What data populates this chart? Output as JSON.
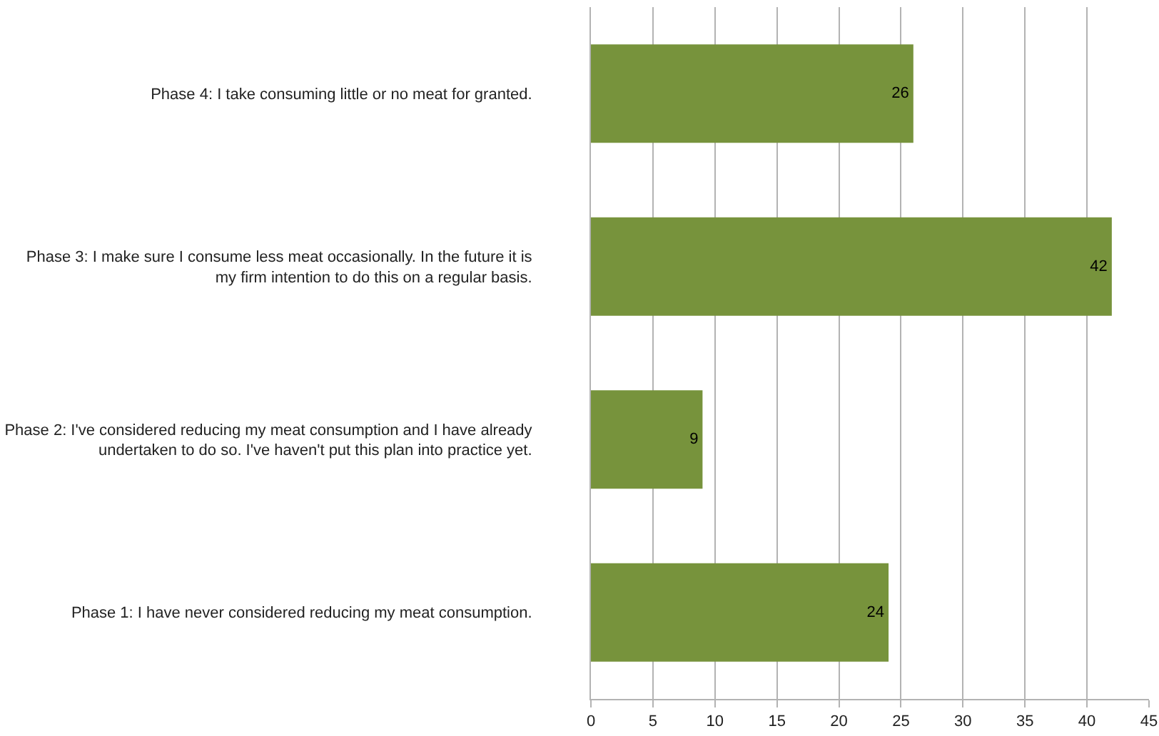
{
  "chart_data": {
    "type": "bar",
    "orientation": "horizontal",
    "categories": [
      "Phase 4: I take consuming little or no meat for granted.",
      "Phase 3: I make sure I consume less meat occasionally. In the future it is my firm intention to do this on a regular basis.",
      "Phase 2: I've considered reducing my meat consumption and I have already undertaken to do so. I've haven't put this plan into practice yet.",
      "Phase 1: I have never considered reducing my meat consumption."
    ],
    "values": [
      26,
      42,
      9,
      24
    ],
    "color": "#77933c",
    "xlim": [
      0,
      45
    ],
    "xticks": [
      0,
      5,
      10,
      15,
      20,
      25,
      30,
      35,
      40,
      45
    ],
    "grid": "x",
    "data_labels": true
  }
}
